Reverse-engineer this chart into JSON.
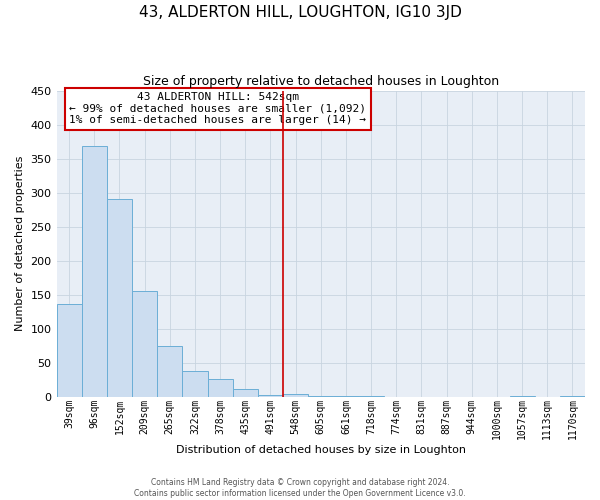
{
  "title": "43, ALDERTON HILL, LOUGHTON, IG10 3JD",
  "subtitle": "Size of property relative to detached houses in Loughton",
  "xlabel": "Distribution of detached houses by size in Loughton",
  "ylabel": "Number of detached properties",
  "categories": [
    "39sqm",
    "96sqm",
    "152sqm",
    "209sqm",
    "265sqm",
    "322sqm",
    "378sqm",
    "435sqm",
    "491sqm",
    "548sqm",
    "605sqm",
    "661sqm",
    "718sqm",
    "774sqm",
    "831sqm",
    "887sqm",
    "944sqm",
    "1000sqm",
    "1057sqm",
    "1113sqm",
    "1170sqm"
  ],
  "values": [
    136,
    369,
    290,
    156,
    75,
    38,
    26,
    11,
    3,
    5,
    2,
    2,
    1,
    0,
    0,
    0,
    0,
    0,
    2,
    0,
    2
  ],
  "bar_color": "#ccddf0",
  "bar_edge_color": "#6baed6",
  "highlight_line_color": "#cc0000",
  "annotation_title": "43 ALDERTON HILL: 542sqm",
  "annotation_line1": "← 99% of detached houses are smaller (1,092)",
  "annotation_line2": "1% of semi-detached houses are larger (14) →",
  "annotation_box_color": "#ffffff",
  "annotation_box_edge": "#cc0000",
  "grid_color": "#c8d4e0",
  "background_color": "#e8eef6",
  "ylim": [
    0,
    450
  ],
  "yticks": [
    0,
    50,
    100,
    150,
    200,
    250,
    300,
    350,
    400,
    450
  ],
  "footer_line1": "Contains HM Land Registry data © Crown copyright and database right 2024.",
  "footer_line2": "Contains public sector information licensed under the Open Government Licence v3.0."
}
